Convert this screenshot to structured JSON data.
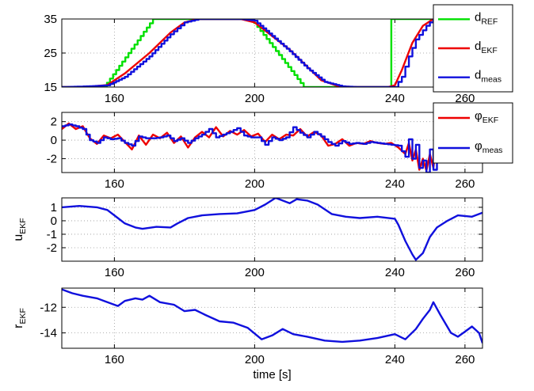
{
  "colors": {
    "ref": "#00e000",
    "ekf": "#ee0000",
    "meas": "#1010dd"
  },
  "chart_data": [
    {
      "type": "line",
      "xlim": [
        145,
        265
      ],
      "ylim": [
        15,
        35
      ],
      "yticks": [
        "15",
        "25",
        "35"
      ],
      "xticks": [
        "160",
        "200",
        "240",
        "260"
      ],
      "ylabel": "",
      "grid": true,
      "legend": [
        {
          "base": "d",
          "sub": "REF",
          "key": "ref"
        },
        {
          "base": "d",
          "sub": "EKF",
          "key": "ekf"
        },
        {
          "base": "d",
          "sub": "meas",
          "key": "meas"
        }
      ],
      "series": [
        {
          "key": "ref",
          "step": true,
          "points": [
            [
              145,
              15
            ],
            [
              157,
              15
            ],
            [
              171,
              35
            ],
            [
              199,
              35
            ],
            [
              214,
              15
            ],
            [
              239,
              15
            ],
            [
              239,
              35
            ],
            [
              265,
              35
            ]
          ]
        },
        {
          "key": "ekf",
          "step": false,
          "points": [
            [
              145,
              15
            ],
            [
              152,
              15
            ],
            [
              158,
              15.6
            ],
            [
              163,
              19
            ],
            [
              170,
              25
            ],
            [
              176,
              31
            ],
            [
              180,
              34
            ],
            [
              184,
              35
            ],
            [
              196,
              35
            ],
            [
              200,
              34
            ],
            [
              205,
              30
            ],
            [
              210,
              26
            ],
            [
              215,
              21
            ],
            [
              219,
              17
            ],
            [
              224,
              15.2
            ],
            [
              229,
              15
            ],
            [
              238,
              15
            ],
            [
              240,
              15.5
            ],
            [
              242,
              20
            ],
            [
              245,
              28
            ],
            [
              248,
              33
            ],
            [
              251,
              35
            ],
            [
              265,
              35
            ]
          ]
        },
        {
          "key": "meas",
          "step": true,
          "points": [
            [
              145,
              15
            ],
            [
              152,
              15.2
            ],
            [
              158,
              15.5
            ],
            [
              163,
              18
            ],
            [
              170,
              24
            ],
            [
              176,
              30.5
            ],
            [
              180,
              34
            ],
            [
              184,
              35
            ],
            [
              196,
              35
            ],
            [
              200,
              34.5
            ],
            [
              205,
              30
            ],
            [
              210,
              25.5
            ],
            [
              215,
              20.5
            ],
            [
              220,
              16.5
            ],
            [
              225,
              15.2
            ],
            [
              229,
              15
            ],
            [
              238,
              15
            ],
            [
              240,
              15
            ],
            [
              242,
              18
            ],
            [
              244,
              24
            ],
            [
              246,
              29
            ],
            [
              249,
              33
            ],
            [
              251,
              35
            ],
            [
              265,
              35
            ]
          ]
        }
      ]
    },
    {
      "type": "line",
      "xlim": [
        145,
        265
      ],
      "ylim": [
        -3.5,
        3
      ],
      "yticks": [
        "2",
        "0",
        "-2"
      ],
      "xticks": [
        "160",
        "200",
        "240",
        "260"
      ],
      "ylabel": "",
      "grid": true,
      "legend": [
        {
          "base": "φ",
          "sub": "EKF",
          "key": "ekf"
        },
        {
          "base": "φ",
          "sub": "meas",
          "key": "meas"
        }
      ],
      "series": [
        {
          "key": "ekf",
          "step": false,
          "points": [
            [
              145,
              1.2
            ],
            [
              147,
              1.8
            ],
            [
              149,
              1.2
            ],
            [
              151,
              1.5
            ],
            [
              153,
              0.2
            ],
            [
              155,
              -0.4
            ],
            [
              157,
              0.5
            ],
            [
              159,
              0.2
            ],
            [
              161,
              0.6
            ],
            [
              163,
              -0.2
            ],
            [
              165,
              -1
            ],
            [
              167,
              0.5
            ],
            [
              169,
              -0.5
            ],
            [
              171,
              0.6
            ],
            [
              173,
              0.2
            ],
            [
              175,
              0.8
            ],
            [
              177,
              -0.3
            ],
            [
              179,
              0.4
            ],
            [
              181,
              -0.8
            ],
            [
              183,
              0.3
            ],
            [
              185,
              0.9
            ],
            [
              187,
              0.3
            ],
            [
              189,
              1.4
            ],
            [
              191,
              0.4
            ],
            [
              193,
              1
            ],
            [
              195,
              0.6
            ],
            [
              197,
              1.1
            ],
            [
              199,
              0.4
            ],
            [
              201,
              0.7
            ],
            [
              203,
              -0.2
            ],
            [
              205,
              0.6
            ],
            [
              207,
              0.1
            ],
            [
              209,
              0.6
            ],
            [
              211,
              0.5
            ],
            [
              213,
              1.2
            ],
            [
              215,
              0.4
            ],
            [
              217,
              0.9
            ],
            [
              219,
              0.5
            ],
            [
              221,
              -0.6
            ],
            [
              223,
              -0.4
            ],
            [
              225,
              0.1
            ],
            [
              227,
              -0.6
            ],
            [
              229,
              -0.3
            ],
            [
              231,
              -0.4
            ],
            [
              233,
              -0.1
            ],
            [
              235,
              -0.3
            ],
            [
              237,
              -0.4
            ],
            [
              239,
              -0.3
            ],
            [
              241,
              -0.8
            ],
            [
              243,
              -1.5
            ],
            [
              244,
              -0.3
            ],
            [
              245,
              -2.2
            ],
            [
              246,
              -1
            ],
            [
              247,
              -3.2
            ],
            [
              248,
              -2
            ],
            [
              249,
              -3.3
            ],
            [
              250,
              -1.5
            ],
            [
              251,
              -3
            ],
            [
              252,
              0.2
            ],
            [
              253,
              -0.5
            ]
          ]
        },
        {
          "key": "meas",
          "step": true,
          "points": [
            [
              145,
              1.5
            ],
            [
              147,
              1.7
            ],
            [
              149,
              1.5
            ],
            [
              151,
              1.2
            ],
            [
              153,
              0
            ],
            [
              155,
              -0.3
            ],
            [
              157,
              0.3
            ],
            [
              159,
              0.1
            ],
            [
              161,
              0.2
            ],
            [
              163,
              -0.3
            ],
            [
              165,
              -0.6
            ],
            [
              167,
              0.4
            ],
            [
              169,
              0.2
            ],
            [
              171,
              0.2
            ],
            [
              173,
              0.3
            ],
            [
              175,
              0.5
            ],
            [
              177,
              -0.1
            ],
            [
              179,
              0.2
            ],
            [
              181,
              -0.3
            ],
            [
              183,
              0.2
            ],
            [
              185,
              0.6
            ],
            [
              187,
              1.2
            ],
            [
              189,
              0.3
            ],
            [
              191,
              0.6
            ],
            [
              193,
              0.9
            ],
            [
              195,
              1.3
            ],
            [
              197,
              0.5
            ],
            [
              199,
              0.3
            ],
            [
              201,
              0.3
            ],
            [
              203,
              -0.5
            ],
            [
              205,
              0.3
            ],
            [
              207,
              0
            ],
            [
              209,
              0.3
            ],
            [
              211,
              1.4
            ],
            [
              213,
              0.8
            ],
            [
              215,
              0.3
            ],
            [
              217,
              0.9
            ],
            [
              219,
              0.4
            ],
            [
              221,
              -0.2
            ],
            [
              223,
              -0.6
            ],
            [
              225,
              -0.1
            ],
            [
              227,
              -0.4
            ],
            [
              229,
              -0.3
            ],
            [
              231,
              -0.4
            ],
            [
              233,
              -0.2
            ],
            [
              235,
              -0.3
            ],
            [
              237,
              -0.4
            ],
            [
              239,
              -0.5
            ],
            [
              241,
              -0.6
            ],
            [
              243,
              -1.8
            ],
            [
              244,
              0.1
            ],
            [
              245,
              -2
            ],
            [
              246,
              -0.5
            ],
            [
              247,
              -3
            ],
            [
              248,
              -2.2
            ],
            [
              249,
              -3.5
            ],
            [
              250,
              -1
            ],
            [
              251,
              -3.2
            ],
            [
              252,
              0
            ],
            [
              253,
              0.2
            ]
          ]
        }
      ]
    },
    {
      "type": "line",
      "xlim": [
        145,
        265
      ],
      "ylim": [
        -3,
        1.7
      ],
      "yticks": [
        "1",
        "0",
        "-1",
        "-2"
      ],
      "xticks": [
        "160",
        "200",
        "240",
        "260"
      ],
      "ylabel": {
        "base": "u",
        "sub": "EKF"
      },
      "grid": true,
      "legend": [],
      "series": [
        {
          "key": "meas",
          "step": false,
          "points": [
            [
              145,
              1
            ],
            [
              150,
              1.1
            ],
            [
              155,
              1
            ],
            [
              158,
              0.8
            ],
            [
              161,
              0.2
            ],
            [
              163,
              -0.2
            ],
            [
              166,
              -0.5
            ],
            [
              168,
              -0.6
            ],
            [
              172,
              -0.45
            ],
            [
              176,
              -0.5
            ],
            [
              178,
              -0.2
            ],
            [
              181,
              0.2
            ],
            [
              185,
              0.4
            ],
            [
              190,
              0.5
            ],
            [
              195,
              0.55
            ],
            [
              200,
              0.8
            ],
            [
              203,
              1.2
            ],
            [
              206,
              1.7
            ],
            [
              208,
              1.5
            ],
            [
              210,
              1.3
            ],
            [
              212,
              1.6
            ],
            [
              215,
              1.5
            ],
            [
              218,
              1.2
            ],
            [
              222,
              0.5
            ],
            [
              226,
              0.3
            ],
            [
              230,
              0.2
            ],
            [
              235,
              0.3
            ],
            [
              240,
              0.15
            ],
            [
              241,
              -0.3
            ],
            [
              243,
              -1.5
            ],
            [
              245,
              -2.5
            ],
            [
              246,
              -2.9
            ],
            [
              248,
              -2.4
            ],
            [
              250,
              -1.2
            ],
            [
              252,
              -0.5
            ],
            [
              255,
              0
            ],
            [
              258,
              0.4
            ],
            [
              262,
              0.3
            ],
            [
              265,
              0.6
            ]
          ]
        }
      ]
    },
    {
      "type": "line",
      "xlim": [
        145,
        265
      ],
      "ylim": [
        -15.2,
        -10.5
      ],
      "yticks": [
        "-12",
        "-14"
      ],
      "xticks": [
        "160",
        "200",
        "240",
        "260"
      ],
      "ylabel": {
        "base": "r",
        "sub": "EKF"
      },
      "xlabel": "time [s]",
      "grid": true,
      "legend": [],
      "series": [
        {
          "key": "meas",
          "step": false,
          "points": [
            [
              145,
              -10.6
            ],
            [
              148,
              -10.9
            ],
            [
              151,
              -11.1
            ],
            [
              155,
              -11.3
            ],
            [
              158,
              -11.6
            ],
            [
              161,
              -11.9
            ],
            [
              163,
              -11.5
            ],
            [
              166,
              -11.3
            ],
            [
              168,
              -11.4
            ],
            [
              170,
              -11.1
            ],
            [
              173,
              -11.6
            ],
            [
              177,
              -11.8
            ],
            [
              180,
              -12.3
            ],
            [
              183,
              -12.2
            ],
            [
              186,
              -12.6
            ],
            [
              190,
              -13.1
            ],
            [
              194,
              -13.2
            ],
            [
              198,
              -13.6
            ],
            [
              202,
              -14.5
            ],
            [
              205,
              -14.2
            ],
            [
              208,
              -13.7
            ],
            [
              211,
              -14.1
            ],
            [
              215,
              -14.3
            ],
            [
              220,
              -14.6
            ],
            [
              225,
              -14.7
            ],
            [
              230,
              -14.6
            ],
            [
              235,
              -14.4
            ],
            [
              240,
              -14.1
            ],
            [
              243,
              -14.5
            ],
            [
              246,
              -13.7
            ],
            [
              248,
              -12.9
            ],
            [
              250,
              -12.2
            ],
            [
              251,
              -11.6
            ],
            [
              253,
              -12.6
            ],
            [
              256,
              -14
            ],
            [
              258,
              -14.3
            ],
            [
              260,
              -13.9
            ],
            [
              262,
              -13.5
            ],
            [
              264,
              -14
            ],
            [
              265,
              -14.8
            ]
          ]
        }
      ]
    }
  ]
}
